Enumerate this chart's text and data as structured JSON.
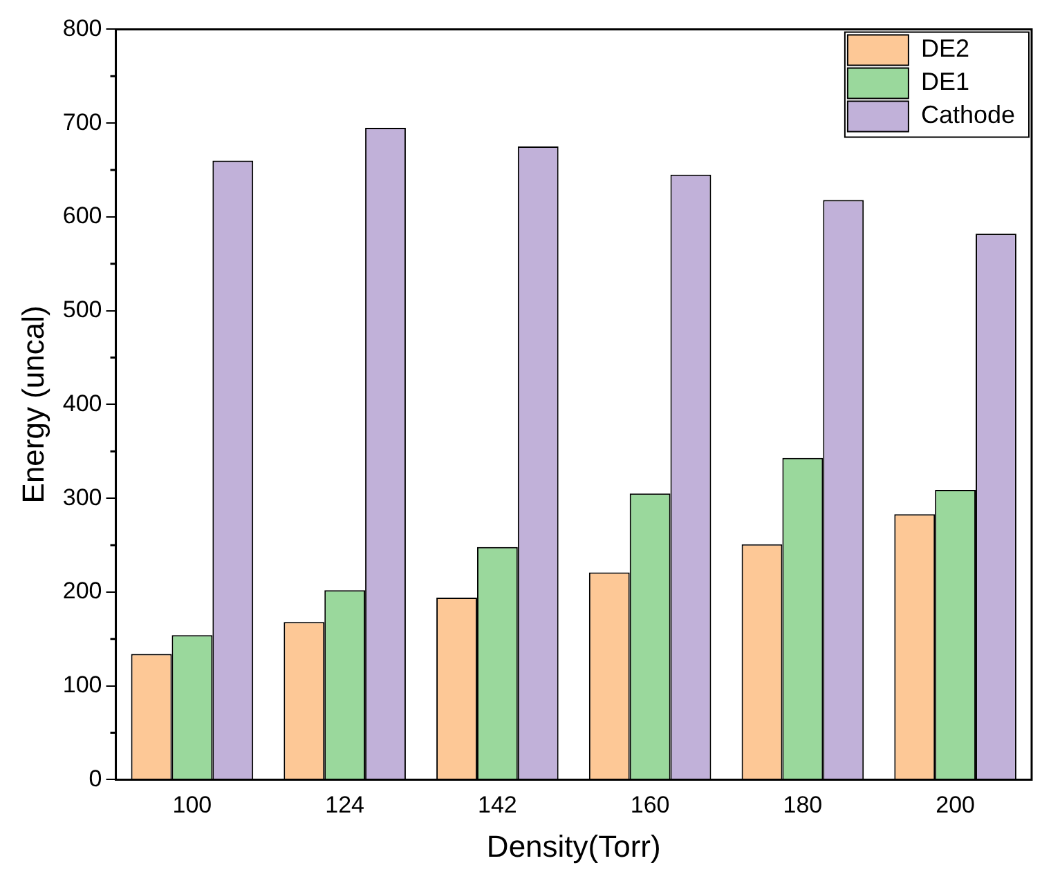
{
  "chart_data": {
    "type": "bar",
    "xlabel": "Density(Torr)",
    "ylabel": "Energy (uncal)",
    "categories": [
      "100",
      "124",
      "142",
      "160",
      "180",
      "200"
    ],
    "series": [
      {
        "name": "DE2",
        "color": "#fdc896",
        "values": [
          134,
          168,
          194,
          221,
          251,
          283
        ]
      },
      {
        "name": "DE1",
        "color": "#9ad89c",
        "values": [
          154,
          202,
          248,
          305,
          343,
          309
        ]
      },
      {
        "name": "Cathode",
        "color": "#c1b1d9",
        "values": [
          660,
          695,
          675,
          645,
          618,
          582
        ]
      }
    ],
    "ylim": [
      0,
      800
    ],
    "yticks": [
      0,
      100,
      200,
      300,
      400,
      500,
      600,
      700,
      800
    ],
    "grid": false,
    "legend": "top right"
  }
}
